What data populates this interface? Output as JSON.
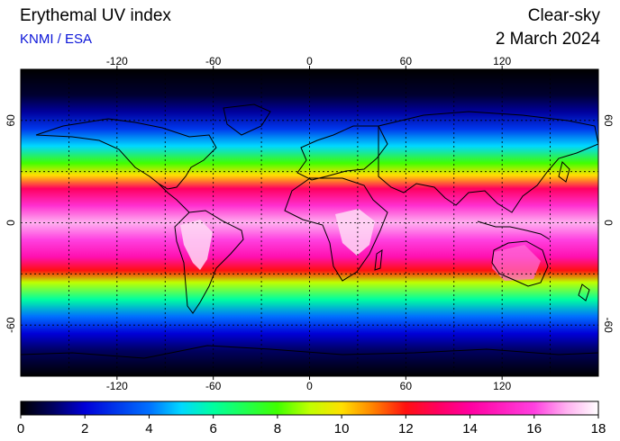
{
  "header": {
    "title": "Erythemal UV index",
    "credit": "KNMI / ESA",
    "condition": "Clear-sky",
    "date": "2 March 2024"
  },
  "map": {
    "projection": "equirectangular",
    "lon_range": [
      -180,
      180
    ],
    "lat_range": [
      -90,
      90
    ],
    "lon_ticks": [
      {
        "value": -120,
        "label": "-120"
      },
      {
        "value": -60,
        "label": "-60"
      },
      {
        "value": 0,
        "label": "0"
      },
      {
        "value": 60,
        "label": "60"
      },
      {
        "value": 120,
        "label": "120"
      }
    ],
    "lat_ticks": [
      {
        "value": 60,
        "label": "60"
      },
      {
        "value": 0,
        "label": "0"
      },
      {
        "value": -60,
        "label": "-60"
      }
    ],
    "grid": "dashed every 30 degrees",
    "uv_by_latitude": [
      {
        "lat": 90,
        "uv": 0
      },
      {
        "lat": 75,
        "uv": 0.5
      },
      {
        "lat": 65,
        "uv": 1.5
      },
      {
        "lat": 55,
        "uv": 3
      },
      {
        "lat": 45,
        "uv": 5
      },
      {
        "lat": 35,
        "uv": 8
      },
      {
        "lat": 28,
        "uv": 10
      },
      {
        "lat": 20,
        "uv": 13
      },
      {
        "lat": 10,
        "uv": 15.5
      },
      {
        "lat": 0,
        "uv": 17
      },
      {
        "lat": -10,
        "uv": 16
      },
      {
        "lat": -20,
        "uv": 14.5
      },
      {
        "lat": -28,
        "uv": 12
      },
      {
        "lat": -35,
        "uv": 9
      },
      {
        "lat": -45,
        "uv": 6
      },
      {
        "lat": -55,
        "uv": 4
      },
      {
        "lat": -65,
        "uv": 2
      },
      {
        "lat": -75,
        "uv": 1
      },
      {
        "lat": -90,
        "uv": 0
      }
    ]
  },
  "colorbar": {
    "min": 0,
    "max": 18,
    "ticks": [
      {
        "value": 0,
        "label": "0"
      },
      {
        "value": 2,
        "label": "2"
      },
      {
        "value": 4,
        "label": "4"
      },
      {
        "value": 6,
        "label": "6"
      },
      {
        "value": 8,
        "label": "8"
      },
      {
        "value": 10,
        "label": "10"
      },
      {
        "value": 12,
        "label": "12"
      },
      {
        "value": 14,
        "label": "14"
      },
      {
        "value": 16,
        "label": "16"
      },
      {
        "value": 18,
        "label": "18"
      }
    ],
    "stops": [
      {
        "value": 0,
        "color": "#000000"
      },
      {
        "value": 1,
        "color": "#000060"
      },
      {
        "value": 2,
        "color": "#0000d8"
      },
      {
        "value": 4,
        "color": "#0070ff"
      },
      {
        "value": 5,
        "color": "#00d8ff"
      },
      {
        "value": 6,
        "color": "#00ffa0"
      },
      {
        "value": 8,
        "color": "#40ff00"
      },
      {
        "value": 9,
        "color": "#c0ff00"
      },
      {
        "value": 10,
        "color": "#ffe000"
      },
      {
        "value": 11,
        "color": "#ff8000"
      },
      {
        "value": 12,
        "color": "#ff1010"
      },
      {
        "value": 13,
        "color": "#ff0060"
      },
      {
        "value": 14,
        "color": "#ff00a0"
      },
      {
        "value": 16,
        "color": "#ff40e0"
      },
      {
        "value": 17,
        "color": "#ffb0f0"
      },
      {
        "value": 18,
        "color": "#ffffff"
      }
    ]
  }
}
